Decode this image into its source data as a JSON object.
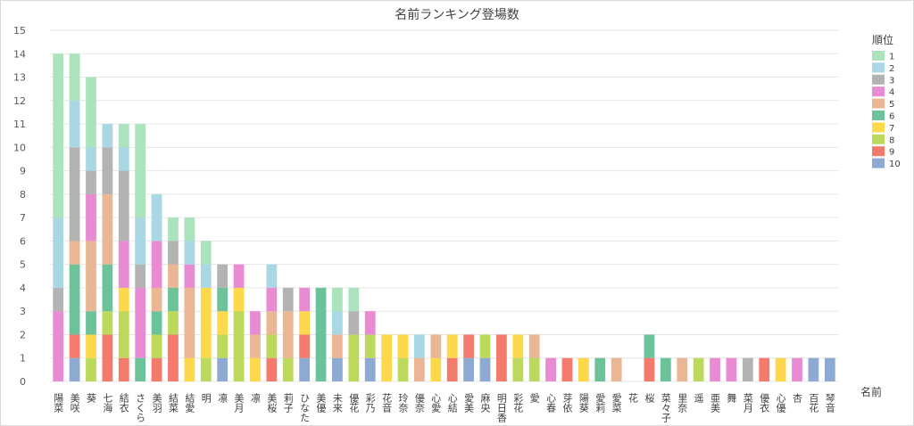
{
  "chart_data": {
    "type": "bar",
    "stacked": true,
    "title": "名前ランキング登場数",
    "xlabel": "名前",
    "ylabel": "",
    "ylim": [
      0,
      15
    ],
    "yticks": [
      0,
      1,
      2,
      3,
      4,
      5,
      6,
      7,
      8,
      9,
      10,
      11,
      12,
      13,
      14,
      15
    ],
    "grid": true,
    "legend_title": "順位",
    "legend_position": "right",
    "categories": [
      "陽菜",
      "美咲",
      "葵",
      "七海",
      "結衣",
      "さくら",
      "美羽",
      "結菜",
      "結愛",
      "明",
      "凛",
      "美月",
      "凛",
      "美桜",
      "莉子",
      "ひなた",
      "美優",
      "未来",
      "優花",
      "彩乃",
      "花音",
      "玲奈",
      "優奈",
      "心愛",
      "心結",
      "愛美",
      "麻央",
      "明日香",
      "彩花",
      "愛",
      "心春",
      "芽依",
      "陽葵",
      "愛莉",
      "愛菜",
      "花",
      "桜",
      "菜々子",
      "里奈",
      "遥",
      "亜美",
      "舞",
      "菜月",
      "優衣",
      "心優",
      "杏",
      "百花",
      "琴音"
    ],
    "series": [
      {
        "name": "10",
        "color": "#8eaad3",
        "values": [
          0,
          1,
          0,
          0,
          0,
          0,
          0,
          0,
          0,
          0,
          1,
          0,
          0,
          0,
          0,
          1,
          0,
          1,
          0,
          1,
          0,
          0,
          0,
          0,
          0,
          1,
          1,
          0,
          0,
          0,
          0,
          0,
          0,
          0,
          0,
          0,
          0,
          0,
          0,
          0,
          0,
          0,
          0,
          0,
          0,
          0,
          1,
          1
        ]
      },
      {
        "name": "9",
        "color": "#f47a6b",
        "values": [
          0,
          1,
          0,
          2,
          1,
          0,
          1,
          2,
          0,
          0,
          0,
          0,
          0,
          1,
          0,
          1,
          0,
          0,
          0,
          0,
          0,
          0,
          0,
          0,
          1,
          1,
          0,
          2,
          0,
          0,
          0,
          1,
          0,
          0,
          0,
          0,
          1,
          0,
          0,
          0,
          0,
          0,
          0,
          1,
          0,
          0,
          0,
          0
        ]
      },
      {
        "name": "8",
        "color": "#bcd95b",
        "values": [
          0,
          0,
          1,
          1,
          2,
          0,
          1,
          1,
          0,
          1,
          1,
          3,
          0,
          1,
          1,
          0,
          0,
          0,
          2,
          1,
          0,
          1,
          0,
          0,
          0,
          0,
          1,
          0,
          1,
          1,
          0,
          0,
          0,
          0,
          0,
          0,
          0,
          0,
          0,
          1,
          0,
          0,
          0,
          0,
          0,
          0,
          0,
          0
        ]
      },
      {
        "name": "7",
        "color": "#fcd84a",
        "values": [
          0,
          0,
          1,
          0,
          1,
          0,
          0,
          0,
          1,
          3,
          1,
          1,
          1,
          0,
          0,
          1,
          0,
          0,
          0,
          0,
          2,
          1,
          0,
          1,
          1,
          0,
          0,
          0,
          1,
          0,
          0,
          0,
          1,
          0,
          0,
          0,
          0,
          0,
          0,
          0,
          0,
          0,
          0,
          0,
          1,
          0,
          0,
          0
        ]
      },
      {
        "name": "6",
        "color": "#6cc39a",
        "values": [
          0,
          3,
          1,
          2,
          0,
          1,
          1,
          1,
          0,
          0,
          1,
          0,
          0,
          0,
          0,
          0,
          4,
          0,
          0,
          0,
          0,
          0,
          0,
          0,
          0,
          0,
          0,
          0,
          0,
          0,
          0,
          0,
          0,
          1,
          0,
          0,
          1,
          1,
          0,
          0,
          0,
          0,
          0,
          0,
          0,
          0,
          0,
          0
        ]
      },
      {
        "name": "5",
        "color": "#eab693",
        "values": [
          0,
          1,
          3,
          3,
          0,
          0,
          1,
          1,
          3,
          0,
          0,
          0,
          1,
          1,
          2,
          0,
          0,
          1,
          0,
          0,
          0,
          0,
          1,
          1,
          0,
          0,
          0,
          0,
          0,
          1,
          0,
          0,
          0,
          0,
          1,
          0,
          0,
          0,
          1,
          0,
          0,
          0,
          0,
          0,
          0,
          0,
          0,
          0
        ]
      },
      {
        "name": "4",
        "color": "#e88bd3",
        "values": [
          3,
          0,
          2,
          0,
          2,
          3,
          2,
          0,
          1,
          0,
          0,
          1,
          1,
          1,
          0,
          1,
          0,
          0,
          0,
          1,
          0,
          0,
          0,
          0,
          0,
          0,
          0,
          0,
          0,
          0,
          1,
          0,
          0,
          0,
          0,
          0,
          0,
          0,
          0,
          0,
          1,
          1,
          0,
          0,
          0,
          1,
          0,
          0
        ]
      },
      {
        "name": "3",
        "color": "#b3b3b3",
        "values": [
          1,
          4,
          1,
          2,
          3,
          1,
          0,
          1,
          0,
          0,
          1,
          0,
          0,
          0,
          1,
          0,
          0,
          0,
          1,
          0,
          0,
          0,
          0,
          0,
          0,
          0,
          0,
          0,
          0,
          0,
          0,
          0,
          0,
          0,
          0,
          0,
          0,
          0,
          0,
          0,
          0,
          0,
          1,
          0,
          0,
          0,
          0,
          0
        ]
      },
      {
        "name": "2",
        "color": "#a9d8e4",
        "values": [
          3,
          2,
          1,
          1,
          1,
          2,
          2,
          0,
          1,
          1,
          0,
          0,
          0,
          1,
          0,
          0,
          0,
          1,
          0,
          0,
          0,
          0,
          1,
          0,
          0,
          0,
          0,
          0,
          0,
          0,
          0,
          0,
          0,
          0,
          0,
          0,
          0,
          0,
          0,
          0,
          0,
          0,
          0,
          0,
          0,
          0,
          0,
          0
        ]
      },
      {
        "name": "1",
        "color": "#abe3bd",
        "values": [
          7,
          2,
          3,
          0,
          1,
          4,
          0,
          1,
          1,
          1,
          0,
          0,
          0,
          0,
          0,
          0,
          0,
          1,
          1,
          0,
          0,
          0,
          0,
          0,
          0,
          0,
          0,
          0,
          0,
          0,
          0,
          0,
          0,
          0,
          0,
          0,
          0,
          0,
          0,
          0,
          0,
          0,
          0,
          0,
          0,
          0,
          0,
          0
        ]
      }
    ]
  }
}
